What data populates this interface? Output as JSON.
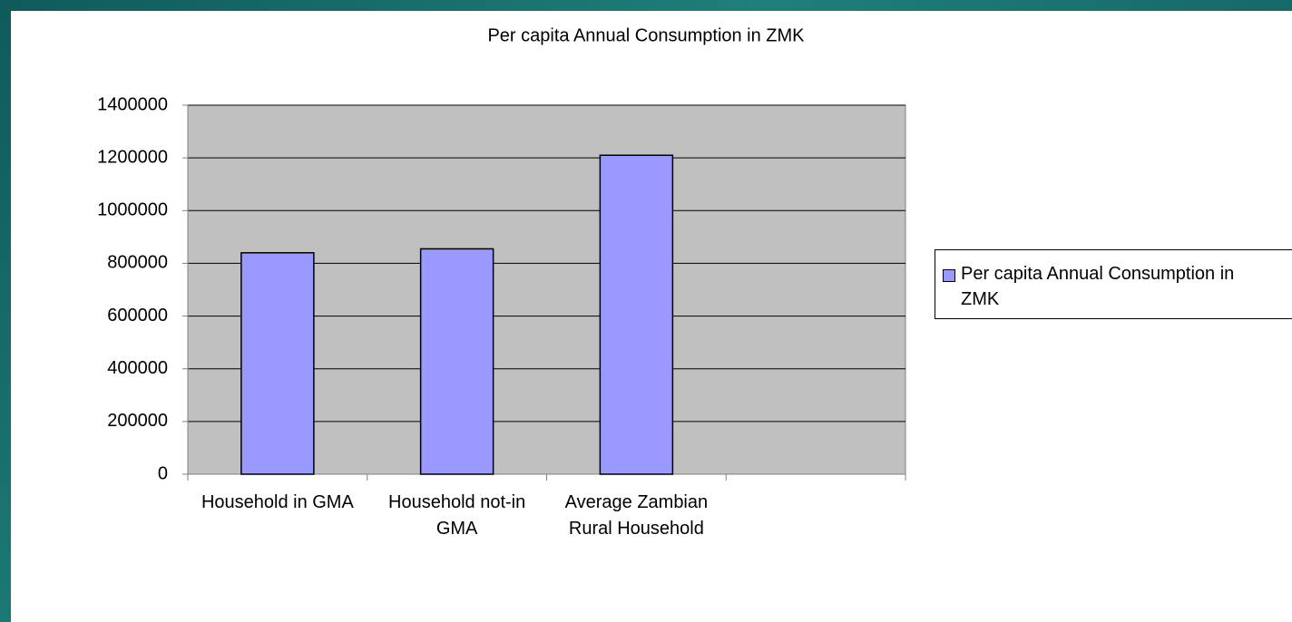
{
  "chart_data": {
    "type": "bar",
    "title": "Per capita Annual Consumption in ZMK",
    "categories": [
      "Household in GMA",
      "Household not-in GMA",
      "Average Zambian Rural Household",
      null
    ],
    "series": [
      {
        "name": "Per capita Annual Consumption in ZMK",
        "color": "#9999ff",
        "values": [
          840000,
          855000,
          1210000,
          null
        ]
      }
    ],
    "ylim": [
      0,
      1400000
    ],
    "yticks": [
      0,
      200000,
      400000,
      600000,
      800000,
      1000000,
      1200000,
      1400000
    ],
    "grid": true,
    "legend": "right"
  }
}
